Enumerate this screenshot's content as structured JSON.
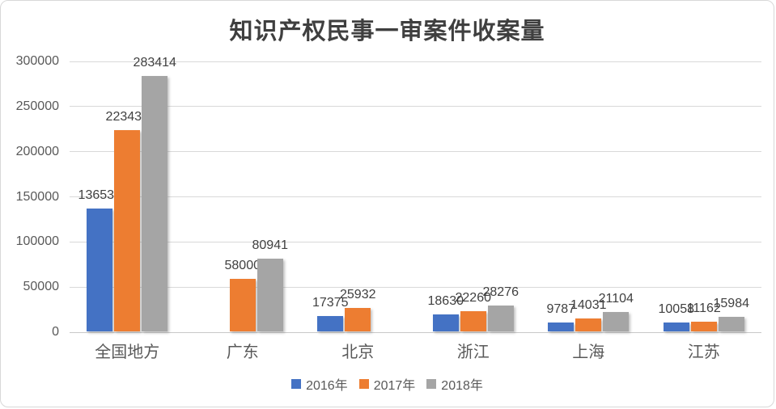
{
  "title": "知识产权民事一审案件收案量",
  "chart_data": {
    "type": "bar",
    "title": "知识产权民事一审案件收案量",
    "categories": [
      "全国地方",
      "广东",
      "北京",
      "浙江",
      "上海",
      "江苏"
    ],
    "series": [
      {
        "name": "2016年",
        "color": "#4472c4",
        "values": [
          136534,
          null,
          17375,
          18630,
          9787,
          10058
        ]
      },
      {
        "name": "2017年",
        "color": "#ed7d31",
        "values": [
          223437,
          58000,
          25932,
          22260,
          14031,
          11162
        ]
      },
      {
        "name": "2018年",
        "color": "#a5a5a5",
        "values": [
          283414,
          80941,
          null,
          28276,
          21104,
          15984
        ]
      }
    ],
    "ylim": [
      0,
      300000
    ],
    "yticks": [
      0,
      50000,
      100000,
      150000,
      200000,
      250000,
      300000
    ],
    "grid": true,
    "data_labels": true,
    "legend_position": "bottom",
    "colors": {
      "grid": "#d9d9d9",
      "axis_text": "#595959",
      "title_text": "#3f3f3f",
      "label_text": "#404040"
    }
  }
}
